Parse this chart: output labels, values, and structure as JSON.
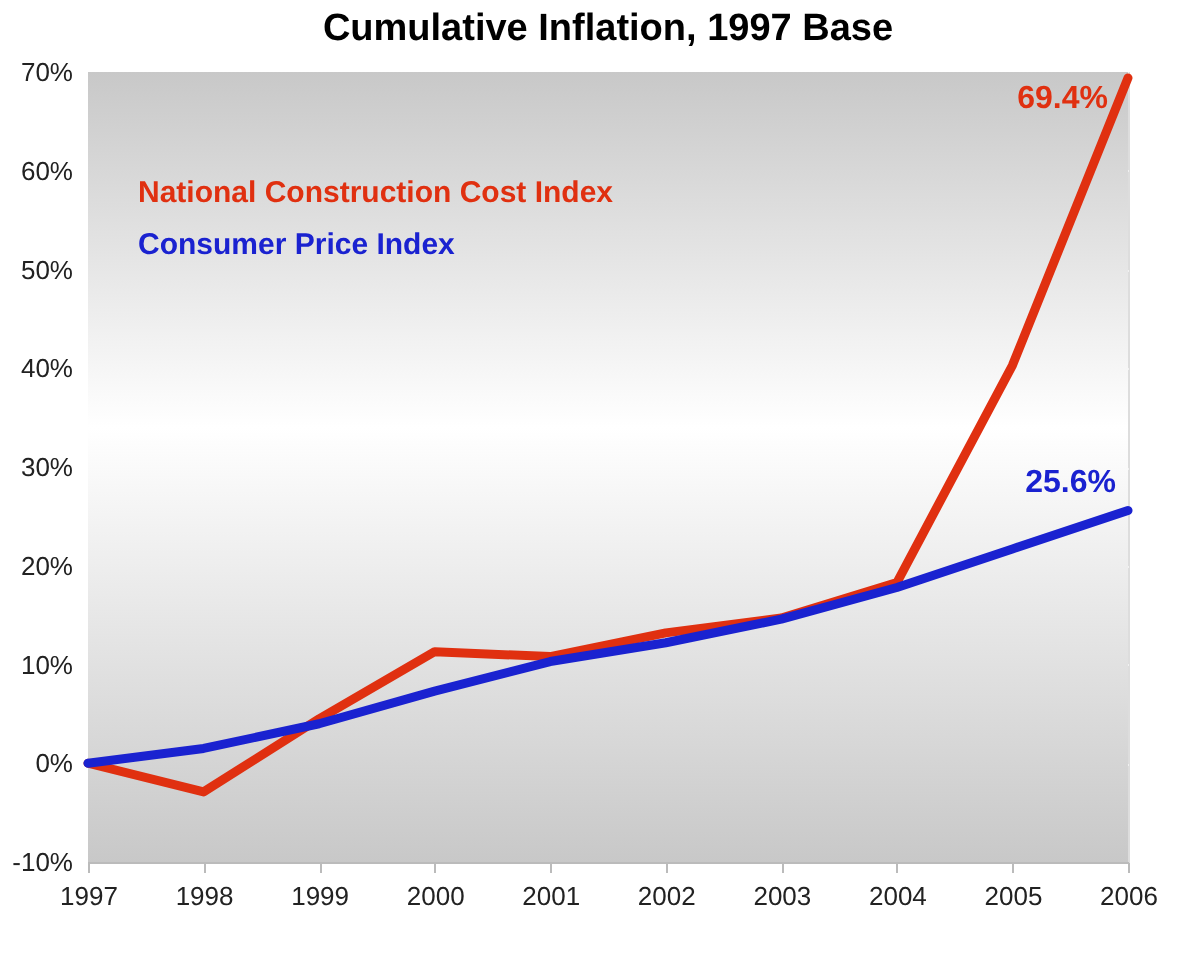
{
  "chart_data": {
    "type": "line",
    "title": "Cumulative Inflation, 1997 Base",
    "x": [
      1997,
      1998,
      1999,
      2000,
      2001,
      2002,
      2003,
      2004,
      2005,
      2006
    ],
    "series": [
      {
        "name": "National Construction Cost Index",
        "color": "#e03010",
        "values": [
          0,
          -2.9,
          4.5,
          11.3,
          10.8,
          13.2,
          14.7,
          18.3,
          40.3,
          69.4
        ]
      },
      {
        "name": "Consumer Price Index",
        "color": "#1a22d0",
        "values": [
          0,
          1.5,
          4.0,
          7.3,
          10.3,
          12.2,
          14.6,
          17.8,
          21.7,
          25.6
        ]
      }
    ],
    "xlim": [
      1997,
      2006
    ],
    "xticks": [
      1997,
      1998,
      1999,
      2000,
      2001,
      2002,
      2003,
      2004,
      2005,
      2006
    ],
    "ylim": [
      -10,
      70
    ],
    "yticks": [
      {
        "value": -10,
        "label": "-10%"
      },
      {
        "value": 0,
        "label": "0%"
      },
      {
        "value": 10,
        "label": "10%"
      },
      {
        "value": 20,
        "label": "20%"
      },
      {
        "value": 30,
        "label": "30%"
      },
      {
        "value": 40,
        "label": "40%"
      },
      {
        "value": 50,
        "label": "50%"
      },
      {
        "value": 60,
        "label": "60%"
      },
      {
        "value": 70,
        "label": "70%"
      }
    ],
    "annotations": [
      {
        "text": "69.4%",
        "x": 2006,
        "y": 69.4
      },
      {
        "text": "25.6%",
        "x": 2006,
        "y": 25.6
      }
    ],
    "grid": "y",
    "legend": "top left",
    "marker": "none",
    "line_style": "solid"
  }
}
